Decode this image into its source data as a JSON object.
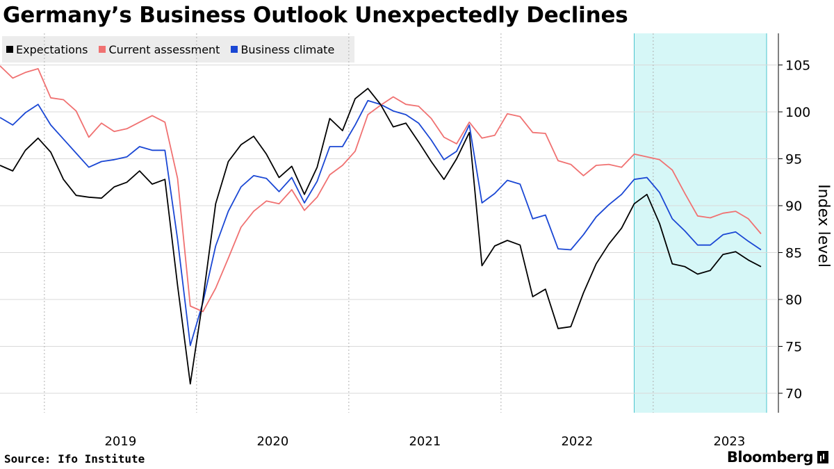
{
  "title": "Germany’s Business Outlook Unexpectedly Declines",
  "source": "Source: Ifo Institute",
  "brand": "Bloomberg",
  "icons": {
    "brand_logo": "bloomberg-bar-chart-icon"
  },
  "chart_data": {
    "type": "line",
    "xlabel": "",
    "ylabel": "Index level",
    "ylim": [
      68,
      108
    ],
    "yticks": [
      70,
      75,
      80,
      85,
      90,
      95,
      100,
      105
    ],
    "x_start": "2018-09",
    "x_year_labels": [
      "2019",
      "2020",
      "2021",
      "2022",
      "2023"
    ],
    "grid": "vertical dashed lines at year boundaries",
    "legend_placement": "top-left",
    "highlight": {
      "from": "2022-11",
      "to": "2023-09",
      "color": "#d6f7f7",
      "border": "#4ac4cf"
    },
    "series": [
      {
        "name": "Expectations",
        "color": "#000000",
        "values": [
          94.3,
          93.7,
          95.9,
          97.2,
          95.7,
          92.8,
          91.1,
          90.9,
          90.8,
          92.0,
          92.5,
          93.7,
          92.3,
          92.8,
          81.5,
          71.0,
          80.0,
          90.2,
          94.7,
          96.5,
          97.4,
          95.5,
          93.0,
          94.2,
          91.2,
          94.1,
          99.3,
          98.0,
          101.4,
          102.5,
          100.8,
          98.4,
          98.8,
          96.8,
          94.7,
          92.8,
          95.0,
          97.8,
          83.6,
          85.7,
          86.3,
          85.8,
          80.3,
          81.1,
          76.9,
          77.1,
          80.7,
          83.8,
          85.9,
          87.6,
          90.2,
          91.2,
          88.1,
          83.8,
          83.5,
          82.7,
          83.1,
          84.8,
          85.1,
          84.2,
          83.5
        ]
      },
      {
        "name": "Current assessment",
        "color": "#f07171",
        "values": [
          104.9,
          103.6,
          104.2,
          104.6,
          101.5,
          101.3,
          100.1,
          97.3,
          98.8,
          97.9,
          98.2,
          98.9,
          99.6,
          98.9,
          92.9,
          79.3,
          78.7,
          81.2,
          84.4,
          87.7,
          89.4,
          90.5,
          90.2,
          91.7,
          89.5,
          90.9,
          93.3,
          94.3,
          95.8,
          99.7,
          100.7,
          101.6,
          100.8,
          100.6,
          99.3,
          97.3,
          96.6,
          98.9,
          97.2,
          97.5,
          99.8,
          99.5,
          97.8,
          97.7,
          94.8,
          94.4,
          93.2,
          94.3,
          94.4,
          94.1,
          95.5,
          95.2,
          94.9,
          93.8,
          91.3,
          88.9,
          88.7,
          89.2,
          89.4,
          88.6,
          87.0
        ]
      },
      {
        "name": "Business climate",
        "color": "#1a47d4",
        "values": [
          99.4,
          98.6,
          99.9,
          100.8,
          98.6,
          97.1,
          95.6,
          94.1,
          94.7,
          94.9,
          95.2,
          96.3,
          95.9,
          95.9,
          86.4,
          75.1,
          79.7,
          85.7,
          89.4,
          92.0,
          93.2,
          92.9,
          91.5,
          93.0,
          90.3,
          92.6,
          96.3,
          96.3,
          98.6,
          101.2,
          100.8,
          100.1,
          99.7,
          98.8,
          97.0,
          94.9,
          95.8,
          98.6,
          90.3,
          91.3,
          92.7,
          92.3,
          88.6,
          89.0,
          85.4,
          85.3,
          86.9,
          88.8,
          90.1,
          91.2,
          92.8,
          93.0,
          91.4,
          88.6,
          87.3,
          85.8,
          85.8,
          86.9,
          87.2,
          86.2,
          85.3
        ]
      }
    ]
  }
}
